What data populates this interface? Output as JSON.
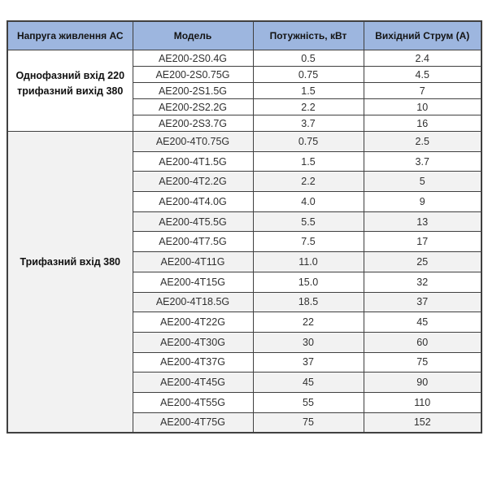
{
  "colors": {
    "header_bg": "#9DB6DF",
    "stripe_bg": "#F2F2F2",
    "border": "#404040"
  },
  "table": {
    "columns": [
      "Напруга живлення АС",
      "Модель",
      "Потужність, кВт",
      "Вихідний Струм (А)"
    ],
    "groups": [
      {
        "label_lines": [
          "Однофазний вхід 220",
          "трифазний вихід 380"
        ],
        "rows": [
          {
            "model": "AE200-2S0.4G",
            "power": "0.5",
            "current": "2.4"
          },
          {
            "model": "AE200-2S0.75G",
            "power": "0.75",
            "current": "4.5"
          },
          {
            "model": "AE200-2S1.5G",
            "power": "1.5",
            "current": "7"
          },
          {
            "model": "AE200-2S2.2G",
            "power": "2.2",
            "current": "10"
          },
          {
            "model": "AE200-2S3.7G",
            "power": "3.7",
            "current": "16"
          }
        ]
      },
      {
        "label_lines": [
          "Трифазний вхід 380"
        ],
        "rows": [
          {
            "model": "AE200-4T0.75G",
            "power": "0.75",
            "current": "2.5"
          },
          {
            "model": "AE200-4T1.5G",
            "power": "1.5",
            "current": "3.7"
          },
          {
            "model": "AE200-4T2.2G",
            "power": "2.2",
            "current": "5"
          },
          {
            "model": "AE200-4T4.0G",
            "power": "4.0",
            "current": "9"
          },
          {
            "model": "AE200-4T5.5G",
            "power": "5.5",
            "current": "13"
          },
          {
            "model": "AE200-4T7.5G",
            "power": "7.5",
            "current": "17"
          },
          {
            "model": "AE200-4T11G",
            "power": "11.0",
            "current": "25"
          },
          {
            "model": "AE200-4T15G",
            "power": "15.0",
            "current": "32"
          },
          {
            "model": "AE200-4T18.5G",
            "power": "18.5",
            "current": "37"
          },
          {
            "model": "AE200-4T22G",
            "power": "22",
            "current": "45"
          },
          {
            "model": "AE200-4T30G",
            "power": "30",
            "current": "60"
          },
          {
            "model": "AE200-4T37G",
            "power": "37",
            "current": "75"
          },
          {
            "model": "AE200-4T45G",
            "power": "45",
            "current": "90"
          },
          {
            "model": "AE200-4T55G",
            "power": "55",
            "current": "110"
          },
          {
            "model": "AE200-4T75G",
            "power": "75",
            "current": "152"
          }
        ]
      }
    ]
  }
}
